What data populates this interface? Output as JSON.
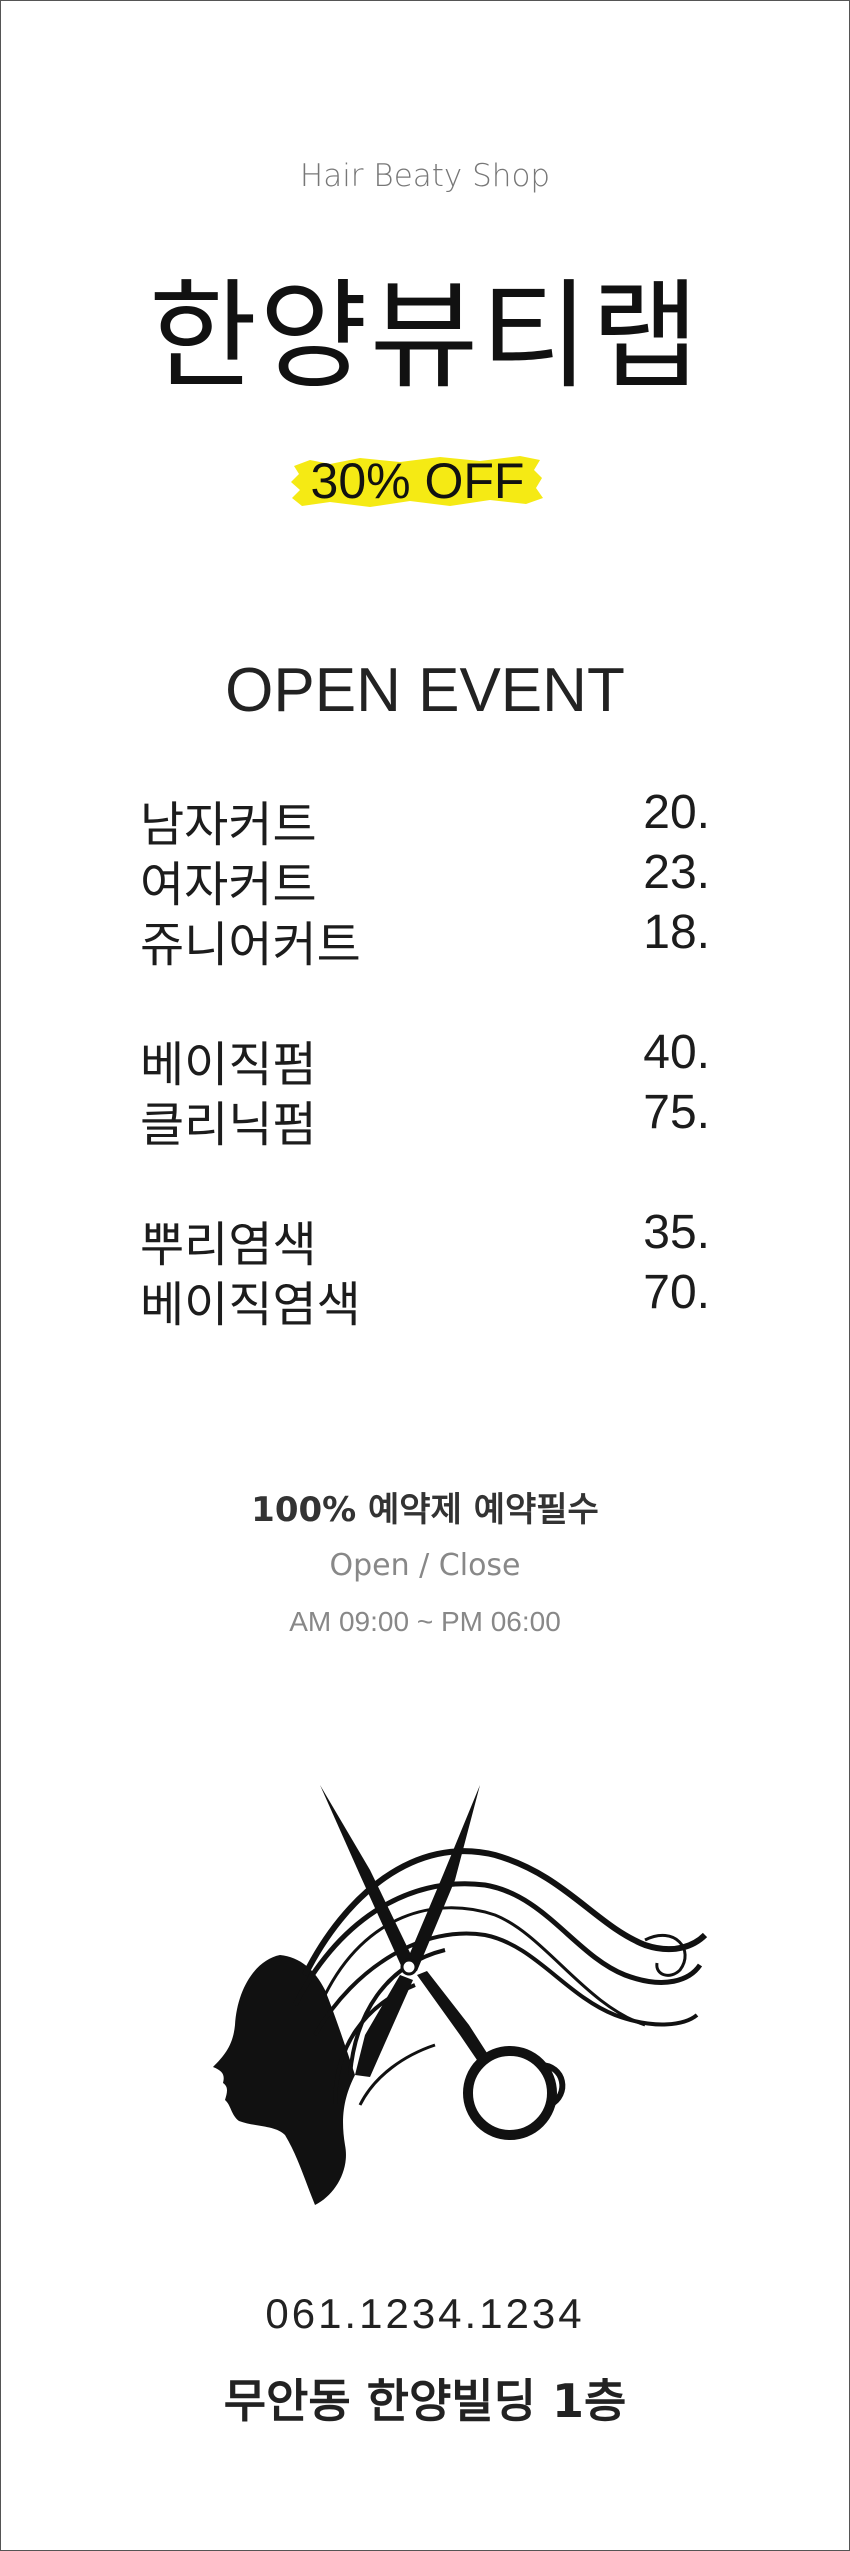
{
  "header": {
    "subtitle": "Hair Beaty Shop",
    "title": "한양뷰티랩",
    "badge": "30% OFF",
    "badge_color": "#f5ea14"
  },
  "event_title": "OPEN EVENT",
  "menu": {
    "groups": [
      [
        {
          "name": "남자커트",
          "price": "20."
        },
        {
          "name": "여자커트",
          "price": "23."
        },
        {
          "name": "쥬니어커트",
          "price": "18."
        }
      ],
      [
        {
          "name": "베이직펌",
          "price": "40."
        },
        {
          "name": "클리닉펌",
          "price": "75."
        }
      ],
      [
        {
          "name": "뿌리염색",
          "price": "35."
        },
        {
          "name": "베이직염색",
          "price": "70."
        }
      ]
    ]
  },
  "info": {
    "notice": "100% 예약제 예약필수",
    "hours_label": "Open / Close",
    "hours": "AM 09:00 ~ PM 06:00"
  },
  "logo_icon": "woman-hair-scissors-icon",
  "contact": {
    "phone": "061.1234.1234",
    "address": "무안동 한양빌딩 1층"
  }
}
